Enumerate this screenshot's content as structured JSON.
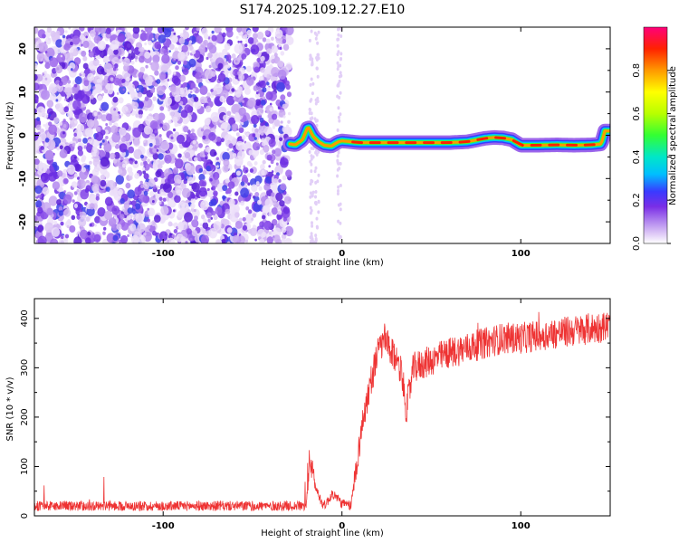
{
  "title": "S174.2025.109.12.27.E10",
  "chart_data": [
    {
      "type": "heatmap",
      "xlabel": "Height of straight line (km)",
      "ylabel": "Frequency (Hz)",
      "xlim": [
        -172,
        150
      ],
      "ylim": [
        -25,
        25
      ],
      "xticks": [
        -100,
        0,
        100
      ],
      "yticks": [
        -20,
        -10,
        0,
        10,
        20
      ],
      "noise_region_x": [
        -172,
        -29
      ],
      "scattered_noise_x": [
        -20,
        0
      ],
      "trace": {
        "x": [
          -29,
          -26,
          -22,
          -19,
          -16,
          -13,
          -10,
          -6,
          -2,
          0,
          10,
          20,
          30,
          40,
          50,
          60,
          70,
          80,
          85,
          90,
          95,
          100,
          110,
          120,
          130,
          140,
          145,
          147,
          150
        ],
        "hz": [
          -2.0,
          -2.2,
          -1.0,
          2.0,
          -0.3,
          -1.5,
          -2.3,
          -2.5,
          -1.5,
          -1.3,
          -1.7,
          -1.7,
          -1.7,
          -1.7,
          -1.7,
          -1.7,
          -1.5,
          -0.7,
          -0.5,
          -0.6,
          -1.0,
          -2.3,
          -2.3,
          -2.2,
          -2.3,
          -2.2,
          -2.0,
          1.0,
          1.0
        ]
      },
      "colorbar": {
        "label": "Normalized spectral amplitude",
        "ticks": [
          0.0,
          0.2,
          0.4,
          0.6,
          0.8
        ],
        "colors": [
          "#ffffff",
          "#c7a3ef",
          "#7a2ee6",
          "#3a3aff",
          "#00bfff",
          "#00e6c8",
          "#33ff33",
          "#b8ff00",
          "#ffff00",
          "#ff9900",
          "#ff2200",
          "#ff007a"
        ]
      }
    },
    {
      "type": "line",
      "xlabel": "Height of straight line (km)",
      "ylabel": "SNR (10 * v/v)",
      "xlim": [
        -172,
        150
      ],
      "ylim": [
        0,
        440
      ],
      "xticks": [
        -100,
        0,
        100
      ],
      "yticks": [
        0,
        100,
        200,
        300,
        400
      ],
      "color": "#ee3333",
      "x": [
        -172,
        -20,
        -18,
        -16,
        -13,
        -10,
        -5,
        0,
        5,
        8,
        12,
        16,
        20,
        24,
        27,
        30,
        33,
        36,
        40,
        50,
        60,
        70,
        80,
        90,
        100,
        110,
        120,
        130,
        140,
        150
      ],
      "snr": [
        20,
        20,
        120,
        75,
        40,
        20,
        45,
        25,
        20,
        100,
        200,
        270,
        330,
        360,
        330,
        320,
        300,
        215,
        300,
        315,
        330,
        340,
        350,
        360,
        360,
        365,
        370,
        375,
        380,
        385
      ]
    }
  ]
}
